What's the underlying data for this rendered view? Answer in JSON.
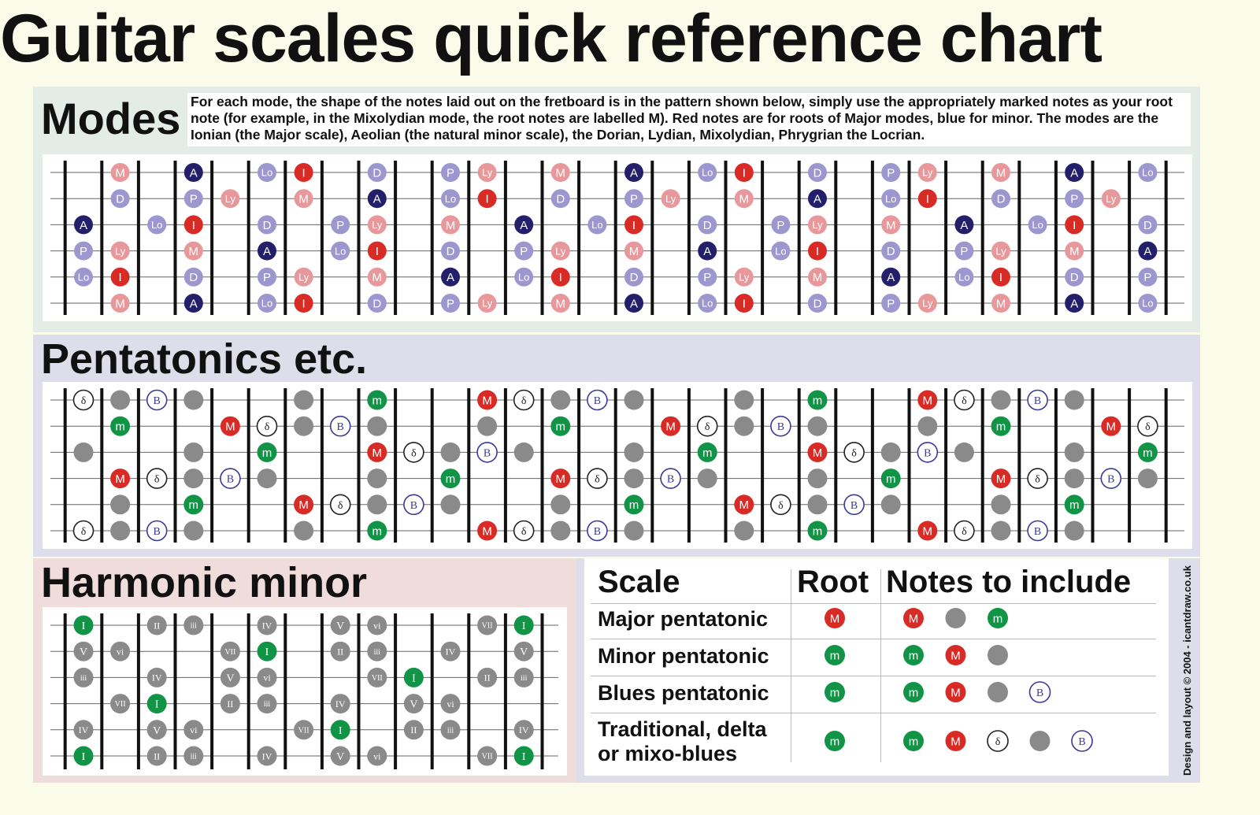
{
  "title": "Guitar scales quick reference chart",
  "modes": {
    "title": "Modes",
    "description": "For each mode, the shape of the notes laid out on the fretboard is in the pattern shown below, simply use the appropriately marked notes as your root note (for example,  in the Mixolydian mode, the root notes are labelled M). Red notes are for roots of Major modes, blue for minor. The modes are the Ionian (the Major scale), Aeolian (the natural minor scale), the Dorian, Lydian, Mixolydian, Phrygrian the Locrian.",
    "notes": [
      [
        "",
        "M",
        "",
        "A",
        "",
        "Lo",
        "I",
        "",
        "D",
        "",
        "P",
        "Ly",
        "",
        "M",
        "",
        "A",
        "",
        "Lo",
        "I",
        "",
        "D",
        "",
        "P",
        "Ly",
        "",
        "M",
        "",
        "A",
        "",
        "Lo"
      ],
      [
        "",
        "D",
        "",
        "P",
        "Ly",
        "",
        "M",
        "",
        "A",
        "",
        "Lo",
        "I",
        "",
        "D",
        "",
        "P",
        "Ly",
        "",
        "M",
        "",
        "A",
        "",
        "Lo",
        "I",
        "",
        "D",
        "",
        "P",
        "Ly",
        ""
      ],
      [
        "A",
        "",
        "Lo",
        "I",
        "",
        "D",
        "",
        "P",
        "Ly",
        "",
        "M",
        "",
        "A",
        "",
        "Lo",
        "I",
        "",
        "D",
        "",
        "P",
        "Ly",
        "",
        "M",
        "",
        "A",
        "",
        "Lo",
        "I",
        "",
        "D"
      ],
      [
        "P",
        "Ly",
        "",
        "M",
        "",
        "A",
        "",
        "Lo",
        "I",
        "",
        "D",
        "",
        "P",
        "Ly",
        "",
        "M",
        "",
        "A",
        "",
        "Lo",
        "I",
        "",
        "D",
        "",
        "P",
        "Ly",
        "",
        "M",
        "",
        "A"
      ],
      [
        "Lo",
        "I",
        "",
        "D",
        "",
        "P",
        "Ly",
        "",
        "M",
        "",
        "A",
        "",
        "Lo",
        "I",
        "",
        "D",
        "",
        "P",
        "Ly",
        "",
        "M",
        "",
        "A",
        "",
        "Lo",
        "I",
        "",
        "D",
        "",
        "P"
      ],
      [
        "",
        "M",
        "",
        "A",
        "",
        "Lo",
        "I",
        "",
        "D",
        "",
        "P",
        "Ly",
        "",
        "M",
        "",
        "A",
        "",
        "Lo",
        "I",
        "",
        "D",
        "",
        "P",
        "Ly",
        "",
        "M",
        "",
        "A",
        "",
        "Lo"
      ]
    ]
  },
  "pentatonics": {
    "title": "Pentatonics etc.",
    "notes": [
      [
        "δ",
        "g",
        "B",
        "g",
        "",
        "",
        "g",
        "",
        "m",
        "",
        "",
        "M",
        "δ",
        "g",
        "B",
        "g",
        "",
        "",
        "g",
        "",
        "m",
        "",
        "",
        "M",
        "δ",
        "g",
        "B",
        "g",
        "",
        ""
      ],
      [
        "",
        "m",
        "",
        "",
        "M",
        "δ",
        "g",
        "B",
        "g",
        "",
        "",
        "g",
        "",
        "m",
        "",
        "",
        "M",
        "δ",
        "g",
        "B",
        "g",
        "",
        "",
        "g",
        "",
        "m",
        "",
        "",
        "M",
        "δ"
      ],
      [
        "g",
        "",
        "",
        "g",
        "",
        "m",
        "",
        "",
        "M",
        "δ",
        "g",
        "B",
        "g",
        "",
        "",
        "g",
        "",
        "m",
        "",
        "",
        "M",
        "δ",
        "g",
        "B",
        "g",
        "",
        "",
        "g",
        "",
        "m"
      ],
      [
        "",
        "M",
        "δ",
        "g",
        "B",
        "g",
        "",
        "",
        "g",
        "",
        "m",
        "",
        "",
        "M",
        "δ",
        "g",
        "B",
        "g",
        "",
        "",
        "g",
        "",
        "m",
        "",
        "",
        "M",
        "δ",
        "g",
        "B",
        "g"
      ],
      [
        "",
        "g",
        "",
        "m",
        "",
        "",
        "M",
        "δ",
        "g",
        "B",
        "g",
        "",
        "",
        "g",
        "",
        "m",
        "",
        "",
        "M",
        "δ",
        "g",
        "B",
        "g",
        "",
        "",
        "g",
        "",
        "m",
        "",
        ""
      ],
      [
        "δ",
        "g",
        "B",
        "g",
        "",
        "",
        "g",
        "",
        "m",
        "",
        "",
        "M",
        "δ",
        "g",
        "B",
        "g",
        "",
        "",
        "g",
        "",
        "m",
        "",
        "",
        "M",
        "δ",
        "g",
        "B",
        "g",
        "",
        ""
      ]
    ]
  },
  "harmonic_minor": {
    "title": "Harmonic minor",
    "notes": [
      [
        "I",
        "",
        "II",
        "iii",
        "",
        "IV",
        "",
        "V",
        "vi",
        "",
        "",
        "VII",
        "I",
        ""
      ],
      [
        "V",
        "vi",
        "",
        "",
        "VII",
        "I",
        "",
        "II",
        "iii",
        "",
        "IV",
        "",
        "V",
        ""
      ],
      [
        "iii",
        "",
        "IV",
        "",
        "V",
        "vi",
        "",
        "",
        "VII",
        "I",
        "",
        "II",
        "iii",
        ""
      ],
      [
        "",
        "VII",
        "I",
        "",
        "II",
        "iii",
        "",
        "IV",
        "",
        "V",
        "vi",
        "",
        "",
        ""
      ],
      [
        "IV",
        "",
        "V",
        "vi",
        "",
        "",
        "VII",
        "I",
        "",
        "II",
        "iii",
        "",
        "IV",
        ""
      ],
      [
        "I",
        "",
        "II",
        "iii",
        "",
        "IV",
        "",
        "V",
        "vi",
        "",
        "",
        "VII",
        "I",
        ""
      ]
    ]
  },
  "table": {
    "headers": {
      "scale": "Scale",
      "root": "Root",
      "notes": "Notes to include"
    },
    "rows": [
      {
        "name": "Major pentatonic",
        "root": "M",
        "notes": [
          "M",
          "g",
          "m"
        ]
      },
      {
        "name": "Minor pentatonic",
        "root": "m",
        "notes": [
          "m",
          "M",
          "g"
        ]
      },
      {
        "name": "Blues pentatonic",
        "root": "m",
        "notes": [
          "m",
          "M",
          "g",
          "B"
        ]
      },
      {
        "name": "Traditional, delta or mixo-blues",
        "root": "m",
        "notes": [
          "m",
          "M",
          "δ",
          "g",
          "B"
        ]
      }
    ]
  },
  "credit": "Design and layout © 2004 - icantdraw.co.uk",
  "colors": {
    "major_root": "#d92b25",
    "major_light": "#e8989a",
    "minor_root": "#231f6b",
    "minor_light": "#9d97cf",
    "pent_m": "#129447",
    "pent_grey": "#8a8a8a",
    "blue_outline": "#3a3a9a"
  }
}
